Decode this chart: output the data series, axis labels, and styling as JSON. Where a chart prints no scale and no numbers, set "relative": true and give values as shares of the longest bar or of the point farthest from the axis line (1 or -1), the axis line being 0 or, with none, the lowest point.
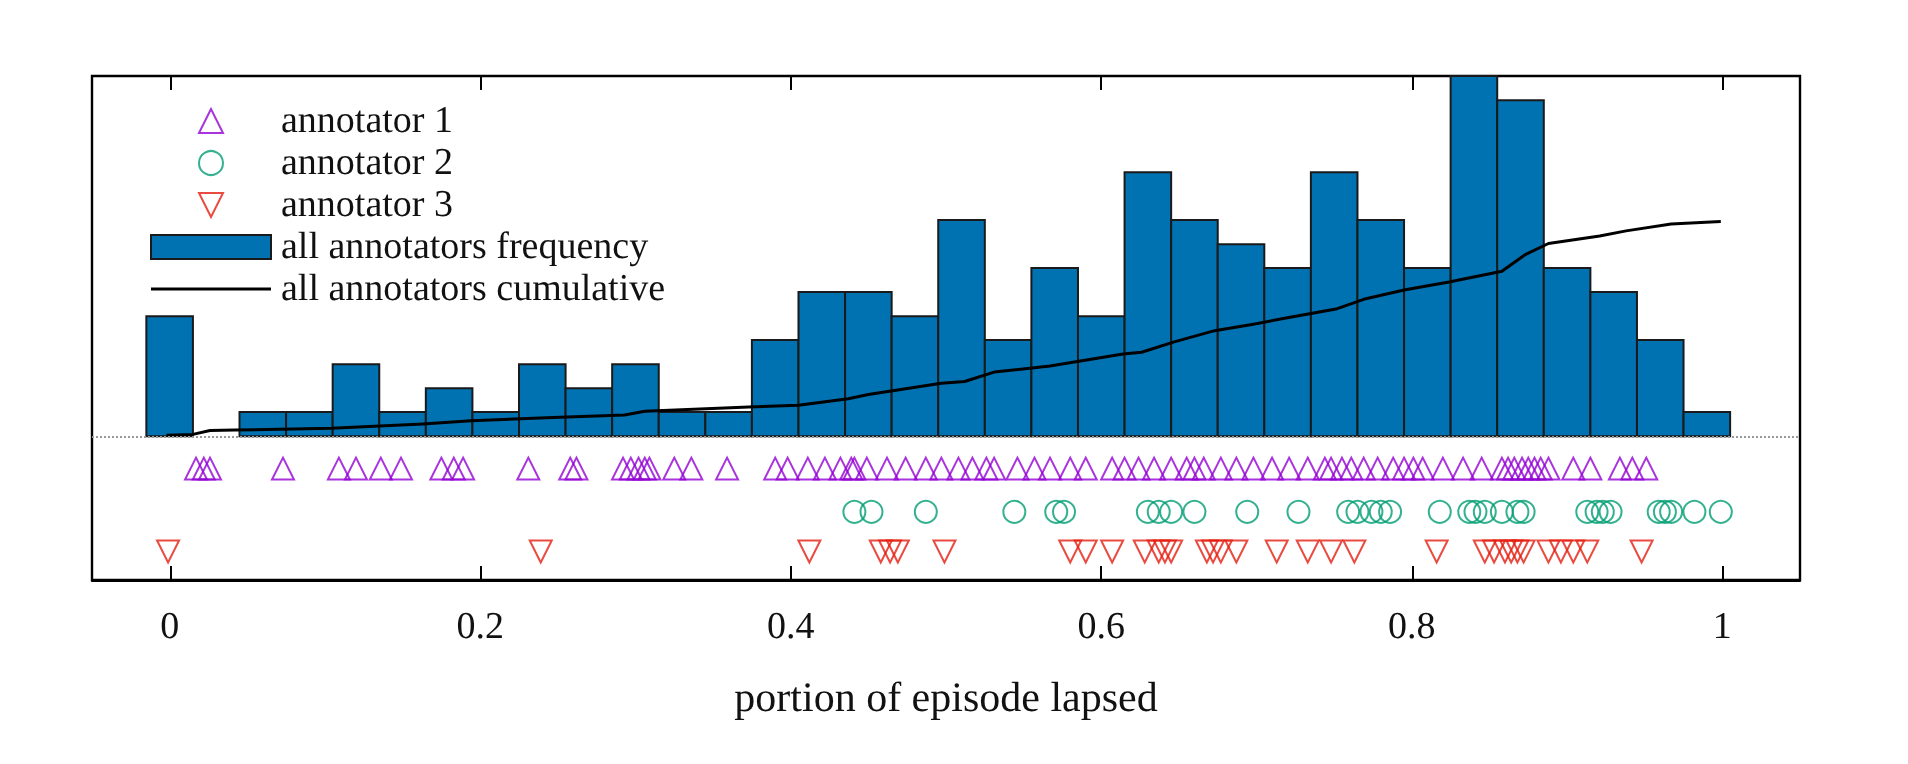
{
  "chart_data": {
    "type": "histogram",
    "relative": true,
    "xlabel": "portion of episode lapsed",
    "xlim": [
      -0.05,
      1.05
    ],
    "xticks": [
      0,
      0.2,
      0.4,
      0.6,
      0.8,
      1
    ],
    "legend": "top left",
    "ref_lines": [
      {
        "axis": "y",
        "value": 0,
        "color": "#999999",
        "line_style": "dotted"
      }
    ],
    "bins": [
      -0.015,
      0.015,
      0.045,
      0.075,
      0.105,
      0.135,
      0.165,
      0.195,
      0.225,
      0.255,
      0.285,
      0.315,
      0.345,
      0.375,
      0.405,
      0.435,
      0.465,
      0.495,
      0.525,
      0.555,
      0.585,
      0.615,
      0.645,
      0.675,
      0.705,
      0.735,
      0.765,
      0.795,
      0.825,
      0.855,
      0.885,
      0.915,
      0.945,
      0.975,
      1.005
    ],
    "series": [
      {
        "name": "annotator 1",
        "type": "scatter",
        "marker": "triangle",
        "color": "#9400d3",
        "x": [
          0.017,
          0.022,
          0.026,
          0.073,
          0.109,
          0.12,
          0.136,
          0.149,
          0.175,
          0.183,
          0.189,
          0.231,
          0.258,
          0.262,
          0.292,
          0.297,
          0.302,
          0.306,
          0.309,
          0.325,
          0.336,
          0.359,
          0.39,
          0.398,
          0.411,
          0.422,
          0.432,
          0.439,
          0.441,
          0.449,
          0.462,
          0.474,
          0.487,
          0.497,
          0.508,
          0.517,
          0.526,
          0.531,
          0.546,
          0.557,
          0.567,
          0.58,
          0.59,
          0.607,
          0.615,
          0.624,
          0.634,
          0.645,
          0.655,
          0.66,
          0.666,
          0.677,
          0.687,
          0.698,
          0.71,
          0.721,
          0.733,
          0.744,
          0.748,
          0.755,
          0.761,
          0.769,
          0.778,
          0.788,
          0.795,
          0.801,
          0.807,
          0.82,
          0.833,
          0.845,
          0.858,
          0.862,
          0.866,
          0.871,
          0.875,
          0.879,
          0.883,
          0.888,
          0.904,
          0.915,
          0.934,
          0.942,
          0.951
        ],
        "values": [
          -0.09,
          -0.09,
          -0.09,
          -0.09,
          -0.09,
          -0.09,
          -0.09,
          -0.09,
          -0.09,
          -0.09,
          -0.09,
          -0.09,
          -0.09,
          -0.09,
          -0.09,
          -0.09,
          -0.09,
          -0.09,
          -0.09,
          -0.09,
          -0.09,
          -0.09,
          -0.09,
          -0.09,
          -0.09,
          -0.09,
          -0.09,
          -0.09,
          -0.09,
          -0.09,
          -0.09,
          -0.09,
          -0.09,
          -0.09,
          -0.09,
          -0.09,
          -0.09,
          -0.09,
          -0.09,
          -0.09,
          -0.09,
          -0.09,
          -0.09,
          -0.09,
          -0.09,
          -0.09,
          -0.09,
          -0.09,
          -0.09,
          -0.09,
          -0.09,
          -0.09,
          -0.09,
          -0.09,
          -0.09,
          -0.09,
          -0.09,
          -0.09,
          -0.09,
          -0.09,
          -0.09,
          -0.09,
          -0.09,
          -0.09,
          -0.09,
          -0.09,
          -0.09,
          -0.09,
          -0.09,
          -0.09,
          -0.09,
          -0.09,
          -0.09,
          -0.09,
          -0.09,
          -0.09,
          -0.09,
          -0.09,
          -0.09,
          -0.09,
          -0.09,
          -0.09,
          -0.09
        ]
      },
      {
        "name": "annotator 2",
        "type": "scatter",
        "marker": "circle",
        "color": "#009e73",
        "x": [
          0.441,
          0.452,
          0.487,
          0.544,
          0.571,
          0.576,
          0.63,
          0.637,
          0.645,
          0.66,
          0.694,
          0.727,
          0.759,
          0.765,
          0.774,
          0.78,
          0.786,
          0.818,
          0.837,
          0.841,
          0.847,
          0.858,
          0.868,
          0.872,
          0.913,
          0.919,
          0.923,
          0.928,
          0.959,
          0.963,
          0.967,
          0.982,
          0.999
        ],
        "values": [
          -0.21,
          -0.21,
          -0.21,
          -0.21,
          -0.21,
          -0.21,
          -0.21,
          -0.21,
          -0.21,
          -0.21,
          -0.21,
          -0.21,
          -0.21,
          -0.21,
          -0.21,
          -0.21,
          -0.21,
          -0.21,
          -0.21,
          -0.21,
          -0.21,
          -0.21,
          -0.21,
          -0.21,
          -0.21,
          -0.21,
          -0.21,
          -0.21,
          -0.21,
          -0.21,
          -0.21,
          -0.21,
          -0.21
        ]
      },
      {
        "name": "annotator 3",
        "type": "scatter",
        "marker": "triangle-down",
        "color": "#e51e10",
        "x": [
          -0.001,
          0.239,
          0.412,
          0.458,
          0.464,
          0.469,
          0.499,
          0.58,
          0.59,
          0.607,
          0.628,
          0.637,
          0.641,
          0.645,
          0.668,
          0.672,
          0.677,
          0.687,
          0.713,
          0.733,
          0.748,
          0.763,
          0.816,
          0.847,
          0.853,
          0.86,
          0.864,
          0.868,
          0.872,
          0.888,
          0.896,
          0.904,
          0.913,
          0.948
        ],
        "values": [
          -0.32,
          -0.32,
          -0.32,
          -0.32,
          -0.32,
          -0.32,
          -0.32,
          -0.32,
          -0.32,
          -0.32,
          -0.32,
          -0.32,
          -0.32,
          -0.32,
          -0.32,
          -0.32,
          -0.32,
          -0.32,
          -0.32,
          -0.32,
          -0.32,
          -0.32,
          -0.32,
          -0.32,
          -0.32,
          -0.32,
          -0.32,
          -0.32,
          -0.32,
          -0.32,
          -0.32,
          -0.32,
          -0.32,
          -0.32
        ]
      },
      {
        "name": "all annotators frequency",
        "color": "#0072b2",
        "values": [
          0.333,
          0,
          0.067,
          0.067,
          0.2,
          0.067,
          0.133,
          0.067,
          0.2,
          0.133,
          0.2,
          0.067,
          0.067,
          0.267,
          0.4,
          0.4,
          0.333,
          0.6,
          0.267,
          0.467,
          0.333,
          0.733,
          0.6,
          0.533,
          0.467,
          0.733,
          0.6,
          0.467,
          1,
          0.933,
          0.467,
          0.4,
          0.267,
          0.067
        ]
      },
      {
        "name": "all annotators cumulative",
        "type": "line",
        "color": "#000000",
        "x": [
          -0.002,
          0.015,
          0.026,
          0.042,
          0.104,
          0.163,
          0.194,
          0.247,
          0.293,
          0.306,
          0.373,
          0.405,
          0.437,
          0.45,
          0.497,
          0.512,
          0.531,
          0.567,
          0.614,
          0.626,
          0.647,
          0.673,
          0.698,
          0.719,
          0.752,
          0.769,
          0.795,
          0.824,
          0.858,
          0.873,
          0.888,
          0.921,
          0.938,
          0.967,
          0.999
        ],
        "values": [
          0.003,
          0.005,
          0.016,
          0.017,
          0.022,
          0.034,
          0.043,
          0.052,
          0.059,
          0.069,
          0.081,
          0.086,
          0.104,
          0.116,
          0.147,
          0.152,
          0.178,
          0.195,
          0.228,
          0.233,
          0.262,
          0.293,
          0.311,
          0.328,
          0.354,
          0.38,
          0.406,
          0.428,
          0.458,
          0.504,
          0.535,
          0.556,
          0.57,
          0.589,
          0.596
        ]
      }
    ]
  }
}
